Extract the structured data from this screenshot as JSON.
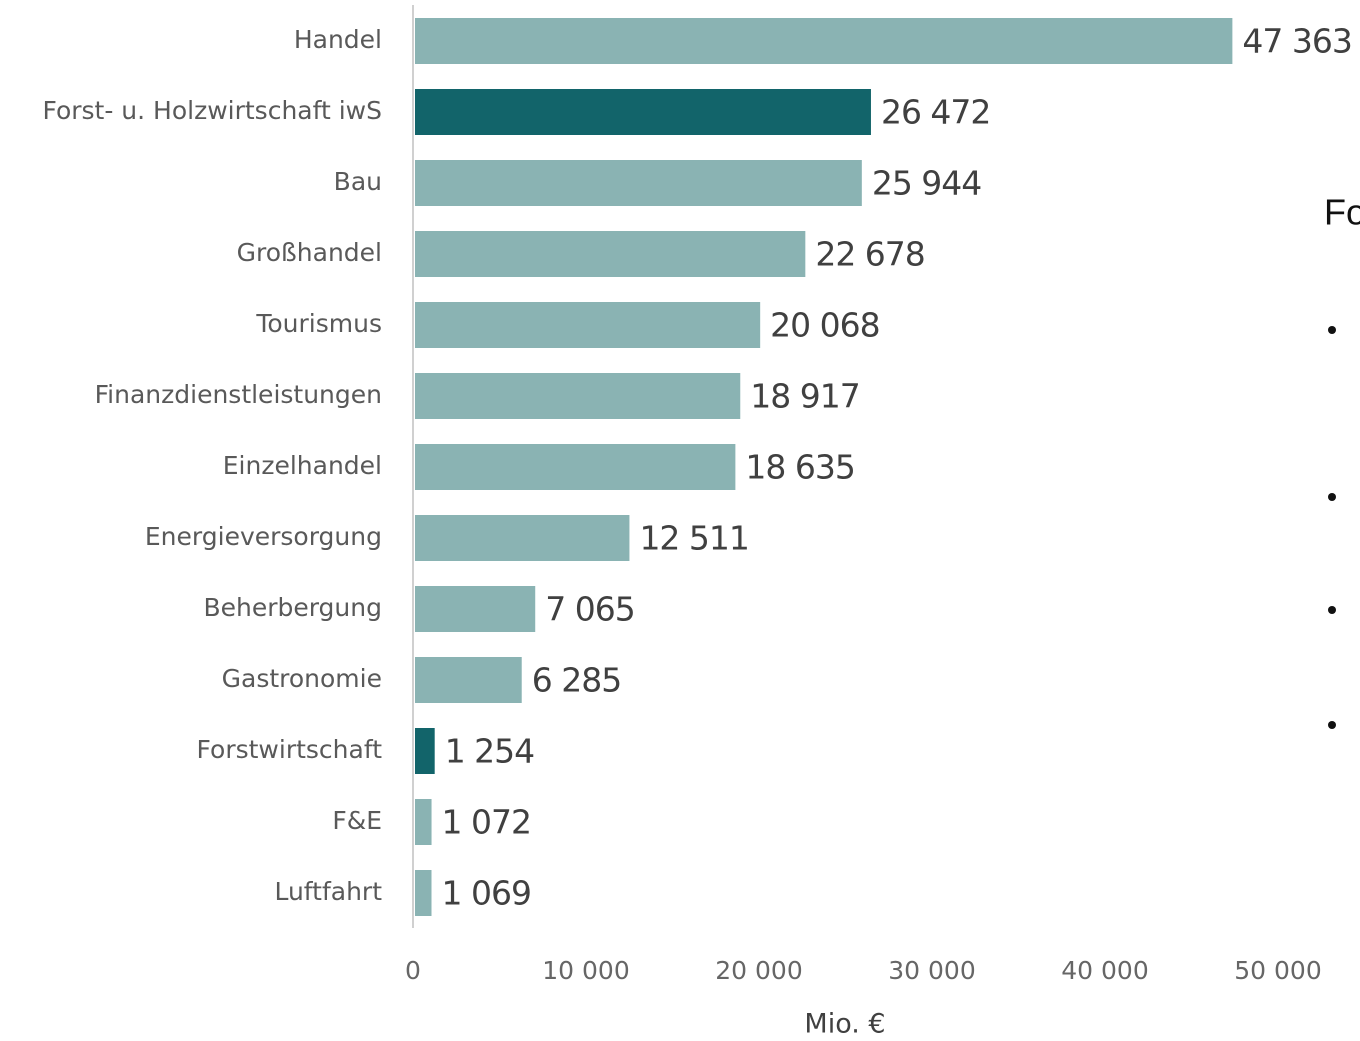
{
  "chart_data": {
    "type": "barh",
    "categories": [
      "Handel",
      "Forst- u. Holzwirtschaft iwS",
      "Bau",
      "Großhandel",
      "Tourismus",
      "Finanzdienstleistungen",
      "Einzelhandel",
      "Energieversorgung",
      "Beherbergung",
      "Gastronomie",
      "Forstwirtschaft",
      "F&E",
      "Luftfahrt"
    ],
    "values": [
      47363,
      26472,
      25944,
      22678,
      20068,
      18917,
      18635,
      12511,
      7065,
      6285,
      1254,
      1072,
      1069
    ],
    "value_labels": [
      "47 363",
      "26 472",
      "25 944",
      "22 678",
      "20 068",
      "18 917",
      "18 635",
      "12 511",
      "7 065",
      "6 285",
      "1 254",
      "1 072",
      "1 069"
    ],
    "colors": [
      "#8ab3b3",
      "#12646a",
      "#8ab3b3",
      "#8ab3b3",
      "#8ab3b3",
      "#8ab3b3",
      "#8ab3b3",
      "#8ab3b3",
      "#8ab3b3",
      "#8ab3b3",
      "#12646a",
      "#8ab3b3",
      "#8ab3b3"
    ],
    "xlabel": "Mio. €",
    "xlim": [
      0,
      50000
    ],
    "xticks": [
      0,
      {
        "value": 10000,
        "label": "10 000"
      },
      {
        "value": 20000,
        "label": "20 000"
      },
      {
        "value": 30000,
        "label": "30 000"
      },
      {
        "value": 40000,
        "label": "40 000"
      },
      {
        "value": 50000,
        "label": "50 000"
      }
    ],
    "grid": false
  },
  "side_panel": {
    "heading": "Fo"
  }
}
